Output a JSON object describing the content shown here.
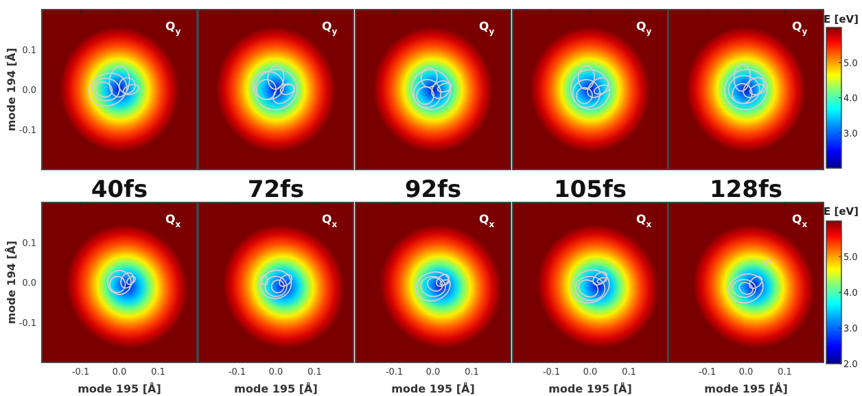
{
  "chart_data": {
    "type": "heatmap",
    "description_grid": "2 rows x 5 columns of potential energy surface maps with wavepacket contours",
    "xlabel": "mode 195 [Å]",
    "ylabel": "mode 194 [Å]",
    "xticks": [
      "-0.1",
      "0.0",
      "0.1"
    ],
    "yticks": [
      "0.1",
      "0.0",
      "-0.1"
    ],
    "xlim": [
      -0.2,
      0.2
    ],
    "ylim": [
      -0.2,
      0.2
    ],
    "times": [
      "40fs",
      "72fs",
      "92fs",
      "105fs",
      "128fs"
    ],
    "rows": [
      {
        "state": "Q",
        "sub": "y",
        "min_xy": [
          0.0,
          0.0
        ]
      },
      {
        "state": "Q",
        "sub": "x",
        "min_xy": [
          0.02,
          -0.01
        ]
      }
    ],
    "colorbar": {
      "title": "E [eV]",
      "ticks_top": [
        "5.0",
        "4.0",
        "3.0"
      ],
      "ticks_bottom": [
        "5.0",
        "4.0",
        "3.0",
        "2.0"
      ],
      "range": [
        2.0,
        6.0
      ],
      "colormap": "jet"
    },
    "contour_color": "#d0d0d0",
    "background_color": "#7a0000"
  }
}
